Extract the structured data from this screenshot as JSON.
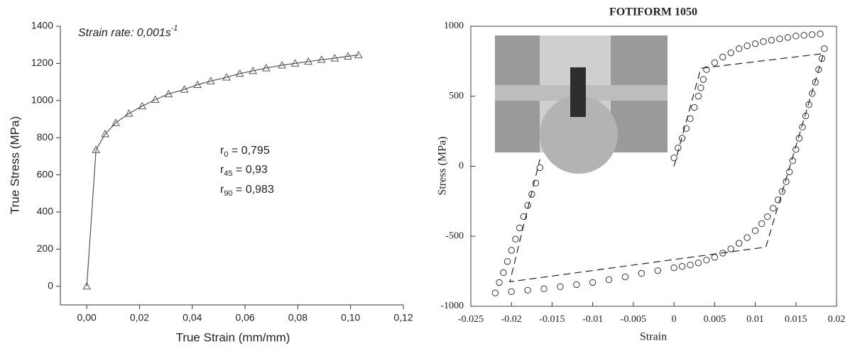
{
  "chart_data": [
    {
      "type": "line",
      "marker": "triangle",
      "color": "#555555",
      "x_label": "True Strain (mm/mm)",
      "y_label": "True Stress (MPa)",
      "annotations": [
        {
          "text": "Strain rate: 0,001s",
          "superscript": "-1"
        },
        {
          "text": "r",
          "subscript": "0",
          "suffix": " = 0,795"
        },
        {
          "text": "r",
          "subscript": "45",
          "suffix": " = 0,93"
        },
        {
          "text": "r",
          "subscript": "90",
          "suffix": " = 0,983"
        }
      ],
      "x": [
        0,
        0.0035,
        0.007,
        0.011,
        0.016,
        0.021,
        0.026,
        0.031,
        0.037,
        0.042,
        0.047,
        0.053,
        0.058,
        0.063,
        0.068,
        0.074,
        0.079,
        0.084,
        0.089,
        0.094,
        0.099,
        0.103
      ],
      "values": [
        0,
        735,
        820,
        880,
        930,
        970,
        1005,
        1035,
        1060,
        1085,
        1105,
        1125,
        1145,
        1160,
        1175,
        1190,
        1200,
        1210,
        1220,
        1228,
        1238,
        1245
      ],
      "xlim": [
        -0.01,
        0.12
      ],
      "xticks": [
        {
          "value": 0,
          "label": "0,00"
        },
        {
          "value": 0.02,
          "label": "0,02"
        },
        {
          "value": 0.04,
          "label": "0,04"
        },
        {
          "value": 0.06,
          "label": "0,06"
        },
        {
          "value": 0.08,
          "label": "0,08"
        },
        {
          "value": 0.1,
          "label": "0,10"
        },
        {
          "value": 0.12,
          "label": "0,12"
        }
      ],
      "ylim": [
        -100,
        1400
      ],
      "yticks": [
        0,
        200,
        400,
        600,
        800,
        1000,
        1200,
        1400
      ]
    },
    {
      "type": "scatter",
      "title": "FOTIFORM 1050",
      "x_label": "Strain",
      "y_label": "Stress (MPa)",
      "series": [
        {
          "marker": "circle",
          "color": "#333333",
          "x": [
            0,
            0.0005,
            0.001,
            0.0015,
            0.002,
            0.0025,
            0.003,
            0.0033,
            0.0036,
            0.004,
            0.005,
            0.006,
            0.007,
            0.008,
            0.009,
            0.01,
            0.011,
            0.012,
            0.013,
            0.014,
            0.015,
            0.016,
            0.017,
            0.018,
            0.0185,
            0.0182,
            0.0178,
            0.0174,
            0.017,
            0.0166,
            0.0162,
            0.0158,
            0.0154,
            0.015,
            0.0146,
            0.0142,
            0.0138,
            0.0133,
            0.0128,
            0.0122,
            0.0115,
            0.0108,
            0.01,
            0.009,
            0.008,
            0.007,
            0.006,
            0.005,
            0.004,
            0.003,
            0.002,
            0.001,
            0,
            -0.002,
            -0.004,
            -0.006,
            -0.008,
            -0.01,
            -0.012,
            -0.014,
            -0.016,
            -0.018,
            -0.02,
            -0.022,
            -0.0215,
            -0.021,
            -0.0205,
            -0.02,
            -0.0195,
            -0.019,
            -0.0185,
            -0.018,
            -0.0175,
            -0.017,
            -0.0165
          ],
          "values": [
            60,
            130,
            200,
            270,
            340,
            420,
            500,
            560,
            620,
            690,
            740,
            780,
            810,
            840,
            860,
            875,
            890,
            900,
            910,
            920,
            930,
            935,
            940,
            945,
            840,
            770,
            690,
            600,
            520,
            440,
            360,
            280,
            200,
            120,
            40,
            -40,
            -110,
            -180,
            -240,
            -300,
            -360,
            -410,
            -460,
            -510,
            -550,
            -590,
            -620,
            -650,
            -670,
            -690,
            -705,
            -715,
            -725,
            -745,
            -765,
            -790,
            -810,
            -830,
            -845,
            -860,
            -875,
            -885,
            -895,
            -905,
            -830,
            -760,
            -680,
            -600,
            -520,
            -440,
            -360,
            -280,
            -200,
            -120,
            -10
          ]
        },
        {
          "line_style": "dashed",
          "color": "#222222",
          "x": [
            0,
            0.0033,
            0.0184,
            0.0113,
            -0.0202,
            -0.0165
          ],
          "values": [
            0,
            700,
            805,
            -577,
            -825,
            50
          ]
        }
      ],
      "xlim": [
        -0.025,
        0.02
      ],
      "xticks": [
        -0.025,
        -0.02,
        -0.015,
        -0.01,
        -0.005,
        0,
        0.005,
        0.01,
        0.015,
        0.02
      ],
      "ylim": [
        -1000,
        1000
      ],
      "yticks": [
        -1000,
        -500,
        0,
        500,
        1000
      ]
    }
  ]
}
